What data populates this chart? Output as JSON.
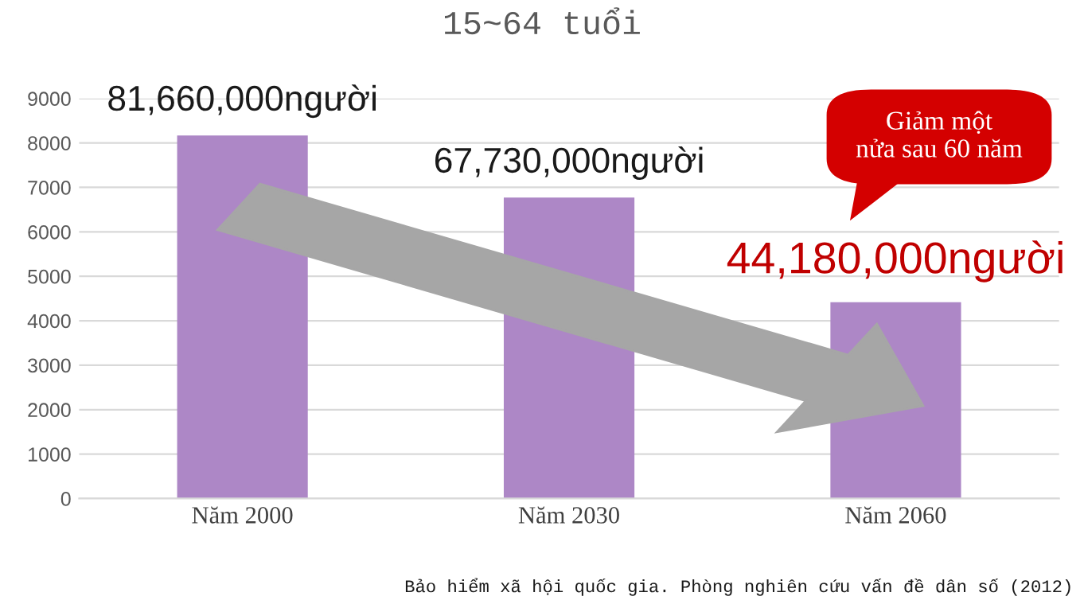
{
  "chart_data": {
    "type": "bar",
    "title": "15~64 tuổi",
    "categories": [
      "Năm 2000",
      "Năm 2030",
      "Năm 2060"
    ],
    "values": [
      8166,
      6773,
      4418
    ],
    "color": "#ad87c6",
    "ylim": [
      0,
      9000
    ],
    "yticks": [
      0,
      1000,
      2000,
      3000,
      4000,
      5000,
      6000,
      7000,
      8000,
      9000
    ],
    "grid": "y",
    "annotations": [
      {
        "text": "81,660,000người",
        "x": "Năm 2000",
        "y": 8166
      },
      {
        "text": "67,730,000người",
        "x": "Năm 2030",
        "y": 6773
      },
      {
        "text": "44,180,000người",
        "x": "Năm 2060",
        "y": 4418
      },
      "Giảm một\nnửa sau 60 năm",
      "Bảo hiểm xã hội quốc gia. Phòng nghiên cứu vấn đề dân số (2012)"
    ]
  }
}
